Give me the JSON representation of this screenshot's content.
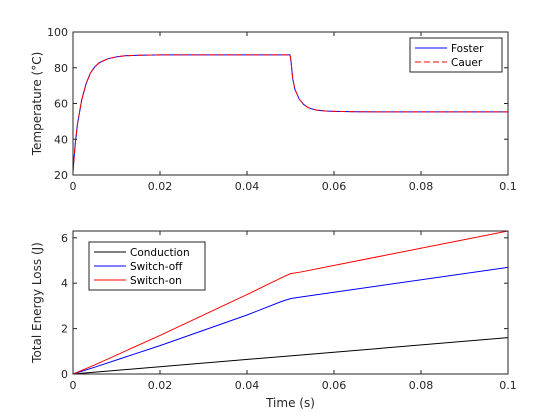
{
  "chart_data": [
    {
      "type": "line",
      "title": "",
      "xlabel": "",
      "ylabel": "Temperature (°C)",
      "xlim": [
        0,
        0.1
      ],
      "ylim": [
        20,
        100
      ],
      "xticks": [
        "0",
        "0.02",
        "0.04",
        "0.06",
        "0.08",
        "0.1"
      ],
      "yticks": [
        "20",
        "40",
        "60",
        "80",
        "100"
      ],
      "legend_position": "top-right",
      "grid": false,
      "series": [
        {
          "name": "Foster",
          "color": "#0000ff",
          "dash": "solid",
          "x": [
            0,
            0.0005,
            0.001,
            0.002,
            0.003,
            0.004,
            0.005,
            0.006,
            0.008,
            0.01,
            0.012,
            0.015,
            0.02,
            0.03,
            0.04,
            0.0499,
            0.0501,
            0.0505,
            0.051,
            0.052,
            0.053,
            0.054,
            0.055,
            0.056,
            0.058,
            0.06,
            0.062,
            0.065,
            0.07,
            0.08,
            0.09,
            0.1
          ],
          "y": [
            22,
            37,
            48,
            62,
            71,
            77,
            80.5,
            82.8,
            85,
            86.1,
            86.7,
            87,
            87.2,
            87.2,
            87.2,
            87.2,
            84,
            74,
            68,
            62.5,
            59.5,
            57.8,
            56.9,
            56.3,
            55.8,
            55.6,
            55.5,
            55.4,
            55.3,
            55.3,
            55.3,
            55.3
          ]
        },
        {
          "name": "Cauer",
          "color": "#ff0000",
          "dash": "dashed",
          "x": [
            0,
            0.0005,
            0.001,
            0.002,
            0.003,
            0.004,
            0.005,
            0.006,
            0.008,
            0.01,
            0.012,
            0.015,
            0.02,
            0.03,
            0.04,
            0.0499,
            0.0501,
            0.0505,
            0.051,
            0.052,
            0.053,
            0.054,
            0.055,
            0.056,
            0.058,
            0.06,
            0.062,
            0.065,
            0.07,
            0.08,
            0.09,
            0.1
          ],
          "y": [
            22,
            37,
            48,
            62,
            71,
            77,
            80.5,
            82.8,
            85,
            86.1,
            86.7,
            87,
            87.2,
            87.2,
            87.2,
            87.2,
            84,
            74,
            68,
            62.5,
            59.5,
            57.8,
            56.9,
            56.3,
            55.8,
            55.6,
            55.5,
            55.4,
            55.3,
            55.3,
            55.3,
            55.3
          ]
        }
      ]
    },
    {
      "type": "line",
      "title": "",
      "xlabel": "Time (s)",
      "ylabel": "Total Energy Loss (J)",
      "xlim": [
        0,
        0.1
      ],
      "ylim": [
        0,
        6.3
      ],
      "xticks": [
        "0",
        "0.02",
        "0.04",
        "0.06",
        "0.08",
        "0.1"
      ],
      "yticks": [
        "0",
        "2",
        "4",
        "6"
      ],
      "legend_position": "top-left",
      "grid": false,
      "series": [
        {
          "name": "Conduction",
          "color": "#000000",
          "dash": "solid",
          "x": [
            0,
            0.05,
            0.1
          ],
          "y": [
            0,
            0.8,
            1.6
          ]
        },
        {
          "name": "Switch-off",
          "color": "#0000ff",
          "dash": "solid",
          "x": [
            0,
            0.005,
            0.02,
            0.04,
            0.048,
            0.05,
            0.052,
            0.1
          ],
          "y": [
            0,
            0.3,
            1.25,
            2.6,
            3.2,
            3.32,
            3.38,
            4.7
          ]
        },
        {
          "name": "Switch-on",
          "color": "#ff0000",
          "dash": "solid",
          "x": [
            0,
            0.005,
            0.02,
            0.04,
            0.048,
            0.05,
            0.052,
            0.1
          ],
          "y": [
            0,
            0.4,
            1.7,
            3.5,
            4.25,
            4.42,
            4.48,
            6.3
          ]
        }
      ]
    }
  ]
}
